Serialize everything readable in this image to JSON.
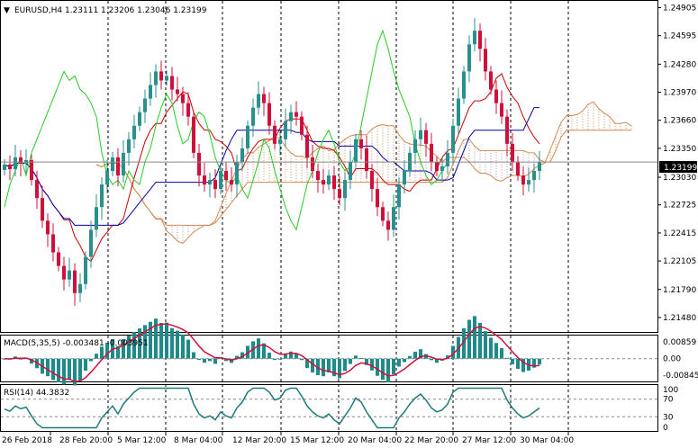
{
  "window": {
    "symbol_header": "EURUSD,H4  1.23111 1.23206 1.23046 1.23199"
  },
  "price_axis": {
    "labels": [
      "1.24905",
      "1.24595",
      "1.24280",
      "1.23970",
      "1.23660",
      "1.23350",
      "1.23030",
      "1.22725",
      "1.22415",
      "1.22105",
      "1.21790",
      "1.21480"
    ],
    "current_price": "1.23199"
  },
  "macd_panel": {
    "header": "MACD(5,35,5) -0.003481 -0.003951",
    "axis_labels": [
      "0.00859",
      "0.00",
      "-0.008456"
    ]
  },
  "rsi_panel": {
    "header": "RSI(14) 44.3832",
    "axis_labels": [
      "100",
      "70",
      "30",
      "0"
    ]
  },
  "time_axis": {
    "labels": [
      "26 Feb 2018",
      "28 Feb 20:00",
      "5 Mar 12:00",
      "8 Mar 04:00",
      "12 Mar 20:00",
      "15 Mar 12:00",
      "20 Mar 04:00",
      "22 Mar 20:00",
      "27 Mar 12:00",
      "30 Mar 04:00"
    ]
  },
  "colors": {
    "bull": "#2a8f8f",
    "bear": "#d0103a",
    "tenkan": "#cc0000",
    "kijun": "#0000aa",
    "chikou": "#22cc22",
    "cloud_up": "#d08a50",
    "cloud_down": "#b090b0",
    "macd_hist": "#1e8a8a",
    "macd_signal": "#d0103a",
    "rsi_line": "#1e7a7a"
  },
  "chart_data": {
    "type": "candlestick",
    "symbol": "EURUSD",
    "timeframe": "H4",
    "ohlc_last": {
      "open": 1.23111,
      "high": 1.23206,
      "low": 1.23046,
      "close": 1.23199
    },
    "y_range": [
      1.2135,
      1.2495
    ],
    "indicators": [
      "Ichimoku",
      "MACD(5,35,5)",
      "RSI(14)"
    ],
    "macd": {
      "main": -0.003481,
      "signal": -0.003951,
      "range": [
        -0.008456,
        0.00859
      ]
    },
    "rsi": {
      "value": 44.3832,
      "levels": [
        70,
        30
      ],
      "range": [
        0,
        100
      ]
    },
    "closes": [
      1.2317,
      1.2312,
      1.2325,
      1.2318,
      1.2322,
      1.23,
      1.228,
      1.2255,
      1.224,
      1.222,
      1.2205,
      1.219,
      1.22,
      1.2175,
      1.2185,
      1.2215,
      1.2245,
      1.227,
      1.2295,
      1.231,
      1.2325,
      1.2305,
      1.233,
      1.2345,
      1.236,
      1.2375,
      1.239,
      1.2405,
      1.242,
      1.241,
      1.2415,
      1.24,
      1.2395,
      1.2385,
      1.237,
      1.233,
      1.2305,
      1.2295,
      1.23,
      1.229,
      1.231,
      1.23,
      1.2295,
      1.232,
      1.2335,
      1.236,
      1.238,
      1.2395,
      1.2385,
      1.236,
      1.234,
      1.2345,
      1.2365,
      1.2375,
      1.237,
      1.235,
      1.2325,
      1.231,
      1.23,
      1.2295,
      1.2305,
      1.229,
      1.228,
      1.23,
      1.232,
      1.2345,
      1.2335,
      1.231,
      1.229,
      1.227,
      1.2255,
      1.2245,
      1.227,
      1.2295,
      1.231,
      1.233,
      1.2345,
      1.2355,
      1.234,
      1.232,
      1.231,
      1.2315,
      1.233,
      1.236,
      1.239,
      1.242,
      1.245,
      1.2465,
      1.2445,
      1.242,
      1.24,
      1.2385,
      1.237,
      1.234,
      1.232,
      1.2305,
      1.2295,
      1.23,
      1.231,
      1.232
    ]
  }
}
